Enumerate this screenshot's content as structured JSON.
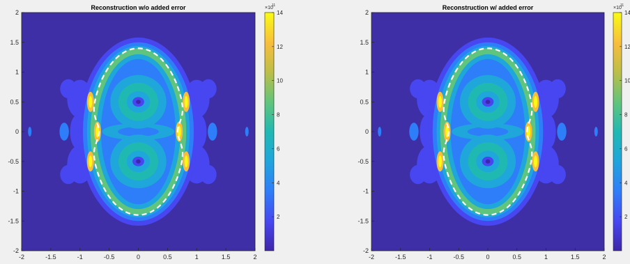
{
  "figure": {
    "background": "#f0f0f0"
  },
  "chart_data": [
    {
      "type": "heatmap",
      "title": "Reconstruction w/o added error",
      "xlabel": "",
      "ylabel": "",
      "xlim": [
        -2,
        2
      ],
      "ylim": [
        -2,
        2
      ],
      "x_ticks": [
        "-2",
        "-1.5",
        "-1",
        "-0.5",
        "0",
        "0.5",
        "1",
        "1.5",
        "2"
      ],
      "y_ticks": [
        "2",
        "1.5",
        "1",
        "0.5",
        "0",
        "-0.5",
        "-1",
        "-1.5",
        "-2"
      ],
      "colorbar": {
        "exponent": "×10",
        "exponent_power": "11",
        "range": [
          0,
          14
        ],
        "ticks": [
          "14",
          "12",
          "10",
          "8",
          "6",
          "4",
          "2"
        ]
      },
      "colormap": "parula",
      "overlay": {
        "style": "dashed",
        "color": "#ffffff",
        "shape": "closed curve (contour) around two-lobed region"
      }
    },
    {
      "type": "heatmap",
      "title": "Reconstruction w/ added error",
      "xlabel": "",
      "ylabel": "",
      "xlim": [
        -2,
        2
      ],
      "ylim": [
        -2,
        2
      ],
      "x_ticks": [
        "-2",
        "-1.5",
        "-1",
        "-0.5",
        "0",
        "0.5",
        "1",
        "1.5",
        "2"
      ],
      "y_ticks": [
        "2",
        "1.5",
        "1",
        "0.5",
        "0",
        "-0.5",
        "-1",
        "-1.5",
        "-2"
      ],
      "colorbar": {
        "exponent": "×10",
        "exponent_power": "11",
        "range": [
          0,
          14
        ],
        "ticks": [
          "14",
          "12",
          "10",
          "8",
          "6",
          "4",
          "2"
        ]
      },
      "colormap": "parula",
      "overlay": {
        "style": "dashed",
        "color": "#ffffff",
        "shape": "closed curve (contour) around two-lobed region"
      }
    }
  ]
}
